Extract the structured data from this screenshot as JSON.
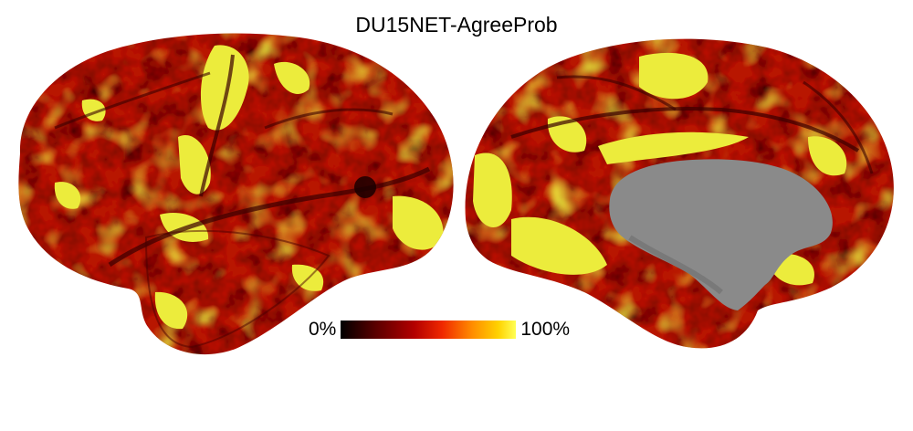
{
  "title": "DU15NET-AgreeProb",
  "colorbar": {
    "min_label": "0%",
    "max_label": "100%",
    "colormap": [
      "#000000",
      "#5a0000",
      "#b30000",
      "#f02800",
      "#ff8c00",
      "#ffd200",
      "#ffff55"
    ]
  },
  "views": {
    "lateral": "lateral-hemisphere",
    "medial": "medial-hemisphere"
  },
  "colors": {
    "medial_wall": "#8a8a8a",
    "hot_dark": "#2a0000",
    "hot_red": "#b81500",
    "hot_orange": "#e85a00",
    "hot_yellow": "#ecec3c"
  }
}
